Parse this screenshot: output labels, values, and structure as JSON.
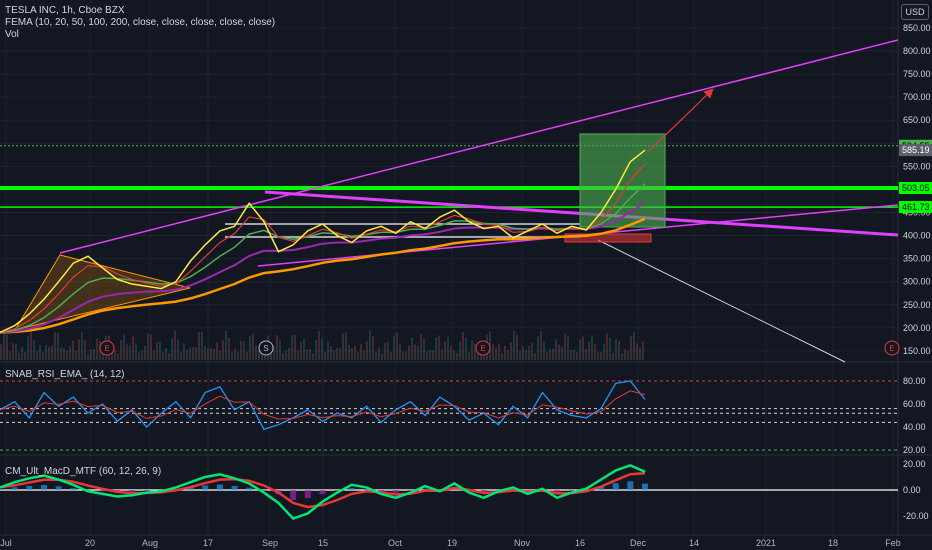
{
  "header": {
    "title": "TESLA INC, 1h, Cboe BZX",
    "indicator": "FEMA (10, 20, 50, 100, 200, close, close, close, close, close)",
    "volume": "Vol",
    "currency": "USD"
  },
  "chart_data": [
    {
      "type": "line",
      "ylim": [
        130,
        880
      ],
      "yticks": [
        150,
        200,
        250,
        300,
        350,
        400,
        450,
        500,
        550,
        600,
        650,
        700,
        750,
        800,
        850
      ],
      "ytick_labels": [
        "150.00",
        "200.00",
        "250.00",
        "300.00",
        "350.00",
        "400.00",
        "450.00",
        "500.00",
        "550.00",
        "600.00",
        "650.00",
        "700.00",
        "750.00",
        "800.00",
        "850.00"
      ],
      "xticks": [
        "Jul",
        "20",
        "Aug",
        "17",
        "Sep",
        "15",
        "Oct",
        "19",
        "Nov",
        "16",
        "Dec",
        "14",
        "2021",
        "18",
        "Feb"
      ],
      "price_labels": [
        {
          "value": 594.55,
          "text": "594.55",
          "color": "#4caf50"
        },
        {
          "value": 585.19,
          "text": "585.19",
          "color": "#5d606b"
        },
        {
          "value": 503.05,
          "text": "503.05",
          "color": "#00ff00"
        },
        {
          "value": 461.73,
          "text": "461.73",
          "color": "#00ff00"
        }
      ],
      "events": [
        "E",
        "E",
        "S",
        "E",
        "E"
      ],
      "price_series": [
        190,
        205,
        230,
        262,
        300,
        340,
        355,
        330,
        305,
        295,
        290,
        285,
        300,
        345,
        380,
        410,
        420,
        470,
        430,
        365,
        380,
        410,
        425,
        400,
        385,
        410,
        420,
        405,
        430,
        415,
        440,
        455,
        430,
        415,
        420,
        395,
        410,
        425,
        405,
        420,
        412,
        450,
        500,
        560,
        585
      ]
    },
    {
      "type": "line",
      "title": "SNAB_RSI_EMA_ (14, 12)",
      "ylim": [
        10,
        95
      ],
      "yticks": [
        20,
        40,
        60,
        80
      ],
      "ytick_labels": [
        "20.00",
        "40.00",
        "60.00",
        "80.00"
      ],
      "rsi_values": [
        55,
        62,
        48,
        70,
        58,
        66,
        52,
        60,
        45,
        55,
        40,
        52,
        62,
        48,
        70,
        75,
        55,
        62,
        38,
        42,
        48,
        55,
        45,
        52,
        48,
        58,
        44,
        55,
        62,
        50,
        66,
        58,
        46,
        52,
        42,
        58,
        48,
        70,
        55,
        50,
        48,
        56,
        78,
        80,
        64
      ]
    },
    {
      "type": "bar",
      "title": "CM_Ult_MacD_MTF (60, 12, 26, 9)",
      "ylim": [
        -30,
        27
      ],
      "yticks": [
        -20,
        0,
        20
      ],
      "ytick_labels": [
        "-20.00",
        "0.00",
        "20.00"
      ],
      "macd_values": [
        2,
        6,
        9,
        11,
        8,
        4,
        -1,
        -3,
        -5,
        -4,
        -2,
        -1,
        2,
        6,
        10,
        12,
        9,
        5,
        -2,
        -10,
        -22,
        -18,
        -9,
        -2,
        4,
        2,
        -3,
        -6,
        -2,
        3,
        -1,
        5,
        -2,
        -6,
        -1,
        2,
        -3,
        1,
        -6,
        -2,
        1,
        8,
        15,
        19,
        14
      ]
    }
  ]
}
